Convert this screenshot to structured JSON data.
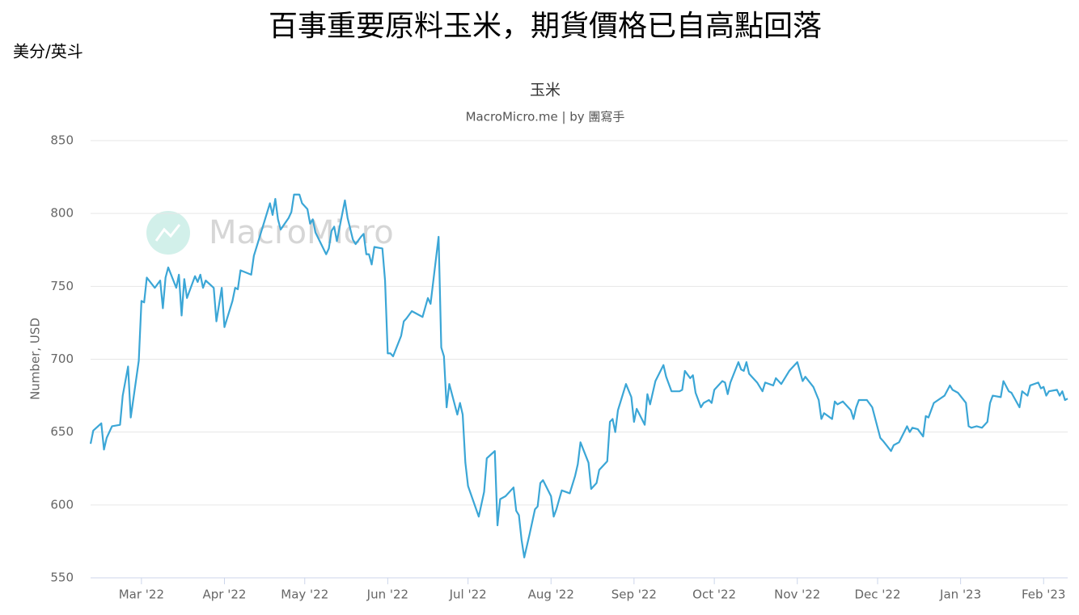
{
  "chart_data": {
    "type": "line",
    "page_title": "百事重要原料玉米，期貨價格已自高點回落",
    "unit_label": "美分/英斗",
    "title": "玉米",
    "subtitle": "MacroMicro.me | by 團寫手",
    "watermark": "MacroMicro",
    "ylabel": "Number, USD",
    "xlim": [
      0,
      365
    ],
    "xticks": [
      {
        "value": 19,
        "label": "Mar '22"
      },
      {
        "value": 50,
        "label": "Apr '22"
      },
      {
        "value": 80,
        "label": "May '22"
      },
      {
        "value": 111,
        "label": "Jun '22"
      },
      {
        "value": 141,
        "label": "Jul '22"
      },
      {
        "value": 172,
        "label": "Aug '22"
      },
      {
        "value": 203,
        "label": "Sep '22"
      },
      {
        "value": 233,
        "label": "Oct '22"
      },
      {
        "value": 264,
        "label": "Nov '22"
      },
      {
        "value": 294,
        "label": "Dec '22"
      },
      {
        "value": 325,
        "label": "Jan '23"
      },
      {
        "value": 356,
        "label": "Feb '23"
      }
    ],
    "ylim": [
      550,
      850
    ],
    "yticks": [
      550,
      600,
      650,
      700,
      750,
      800,
      850
    ],
    "grid": true,
    "series": [
      {
        "name": "玉米",
        "color": "#3ba6d6",
        "x": [
          0,
          1,
          4,
          5,
          6,
          8,
          11,
          12,
          14,
          15,
          18,
          19,
          20,
          21,
          24,
          26,
          27,
          28,
          29,
          32,
          33,
          34,
          35,
          36,
          39,
          40,
          41,
          42,
          43,
          46,
          47,
          49,
          50,
          53,
          54,
          55,
          56,
          60,
          61,
          62,
          67,
          68,
          69,
          70,
          71,
          74,
          75,
          76,
          78,
          79,
          81,
          82,
          83,
          84,
          88,
          89,
          90,
          91,
          92,
          95,
          96,
          98,
          99,
          101,
          102,
          103,
          104,
          105,
          106,
          109,
          110,
          111,
          112,
          113,
          116,
          117,
          118,
          120,
          123,
          124,
          126,
          127,
          130,
          131,
          132,
          133,
          134,
          136,
          137,
          138,
          139,
          140,
          141,
          145,
          147,
          148,
          151,
          152,
          153,
          155,
          158,
          159,
          160,
          161,
          162,
          164,
          166,
          167,
          168,
          169,
          172,
          173,
          174,
          176,
          179,
          181,
          182,
          183,
          186,
          187,
          189,
          190,
          193,
          194,
          195,
          196,
          197,
          200,
          202,
          203,
          204,
          207,
          208,
          209,
          211,
          214,
          215,
          217,
          220,
          221,
          222,
          224,
          225,
          226,
          228,
          229,
          230,
          231,
          232,
          233,
          234,
          236,
          237,
          238,
          239,
          242,
          243,
          244,
          245,
          246,
          249,
          251,
          252,
          255,
          256,
          258,
          261,
          264,
          266,
          267,
          270,
          272,
          273,
          274,
          277,
          278,
          279,
          281,
          284,
          285,
          286,
          287,
          290,
          292,
          295,
          296,
          299,
          300,
          302,
          305,
          306,
          307,
          309,
          311,
          312,
          313,
          315,
          319,
          321,
          322,
          324,
          327,
          328,
          329,
          331,
          333,
          335,
          336,
          337,
          340,
          341,
          343,
          344,
          347,
          348,
          350,
          351,
          354,
          355,
          356,
          357,
          358,
          361,
          362,
          363,
          364,
          365
        ],
        "values": [
          642,
          651,
          656,
          638,
          646,
          654,
          655,
          675,
          695,
          660,
          699,
          740,
          739,
          756,
          749,
          754,
          735,
          756,
          763,
          749,
          758,
          730,
          755,
          742,
          757,
          753,
          758,
          749,
          754,
          749,
          726,
          749,
          722,
          740,
          749,
          748,
          761,
          758,
          771,
          777,
          807,
          799,
          810,
          796,
          789,
          797,
          801,
          813,
          813,
          807,
          803,
          793,
          796,
          787,
          772,
          776,
          788,
          791,
          781,
          809,
          797,
          782,
          779,
          784,
          786,
          772,
          772,
          765,
          777,
          776,
          754,
          704,
          704,
          702,
          716,
          726,
          728,
          733,
          730,
          729,
          742,
          738,
          784,
          708,
          702,
          667,
          683,
          669,
          662,
          670,
          662,
          629,
          613,
          592,
          609,
          632,
          637,
          586,
          604,
          606,
          612,
          596,
          593,
          576,
          564,
          580,
          597,
          599,
          615,
          617,
          606,
          592,
          597,
          610,
          608,
          620,
          628,
          643,
          629,
          611,
          615,
          624,
          630,
          657,
          659,
          650,
          665,
          683,
          674,
          657,
          666,
          655,
          676,
          669,
          685,
          696,
          688,
          678,
          678,
          679,
          692,
          687,
          689,
          677,
          667,
          670,
          671,
          672,
          670,
          679,
          681,
          685,
          684,
          676,
          684,
          698,
          693,
          692,
          698,
          690,
          684,
          678,
          684,
          682,
          687,
          683,
          692,
          698,
          685,
          688,
          681,
          672,
          659,
          663,
          659,
          671,
          669,
          671,
          665,
          659,
          667,
          672,
          672,
          667,
          646,
          644,
          637,
          641,
          643,
          654,
          650,
          653,
          652,
          647,
          661,
          660,
          670,
          675,
          682,
          679,
          677,
          670,
          654,
          653,
          654,
          653,
          657,
          670,
          675,
          674,
          685,
          678,
          677,
          667,
          678,
          675,
          682,
          684,
          680,
          681,
          675,
          678,
          679,
          675,
          678,
          672,
          673
        ]
      }
    ]
  }
}
